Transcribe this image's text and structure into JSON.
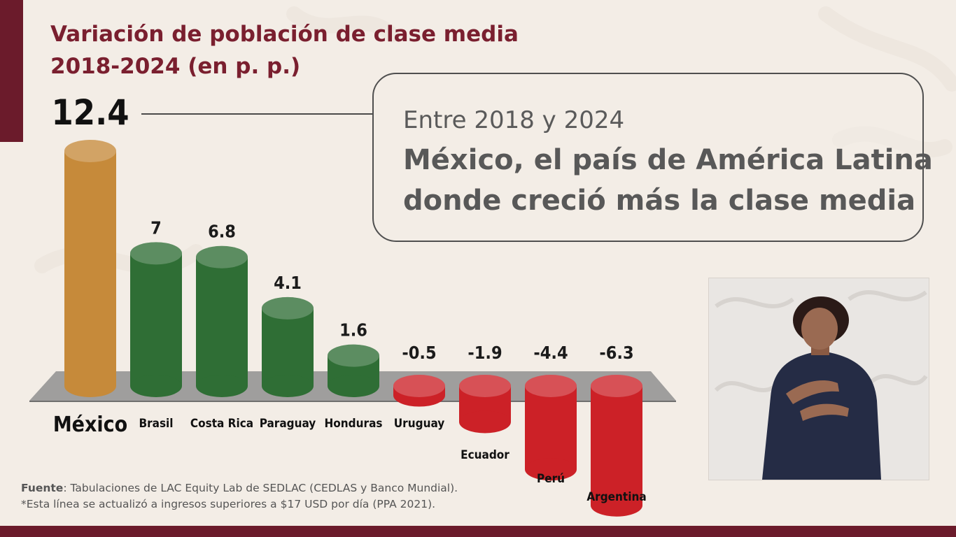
{
  "header": {
    "title_line1": "Variación de población de clase media",
    "title_line2": "2018-2024 (en p. p.)"
  },
  "callout": {
    "subtitle": "Entre 2018 y 2024",
    "headline_line1": "México, el país de América Latina",
    "headline_line2": "donde creció más la clase media"
  },
  "footnote": {
    "source_label": "Fuente",
    "source_text": ": Tabulaciones de LAC Equity Lab de SEDLAC (CEDLAS y Banco Mundial).",
    "note": "*Esta línea se actualizó a ingresos superiores a $17 USD por día (PPA 2021)."
  },
  "colors": {
    "title": "#7a1f2f",
    "highlight": "#c68a3a",
    "positive": "#2f6e35",
    "negative": "#cc2127",
    "floor": "#8f8f8f",
    "brand_stripe": "#6b1b2b"
  },
  "chart_data": {
    "type": "bar",
    "title": "Variación de población de clase media 2018-2024 (en p. p.)",
    "categories": [
      "México",
      "Brasil",
      "Costa Rica",
      "Paraguay",
      "Honduras",
      "Uruguay",
      "Ecuador",
      "Perú",
      "Argentina"
    ],
    "values": [
      12.4,
      7,
      6.8,
      4.1,
      1.6,
      -0.5,
      -1.9,
      -4.4,
      -6.3
    ],
    "value_labels": [
      "12.4",
      "7",
      "6.8",
      "4.1",
      "1.6",
      "-0.5",
      "-1.9",
      "-4.4",
      "-6.3"
    ],
    "highlight": "México",
    "xlabel": "",
    "ylabel": "",
    "grid": false
  },
  "media": {
    "interpreter": "sign-language-interpreter-video"
  }
}
